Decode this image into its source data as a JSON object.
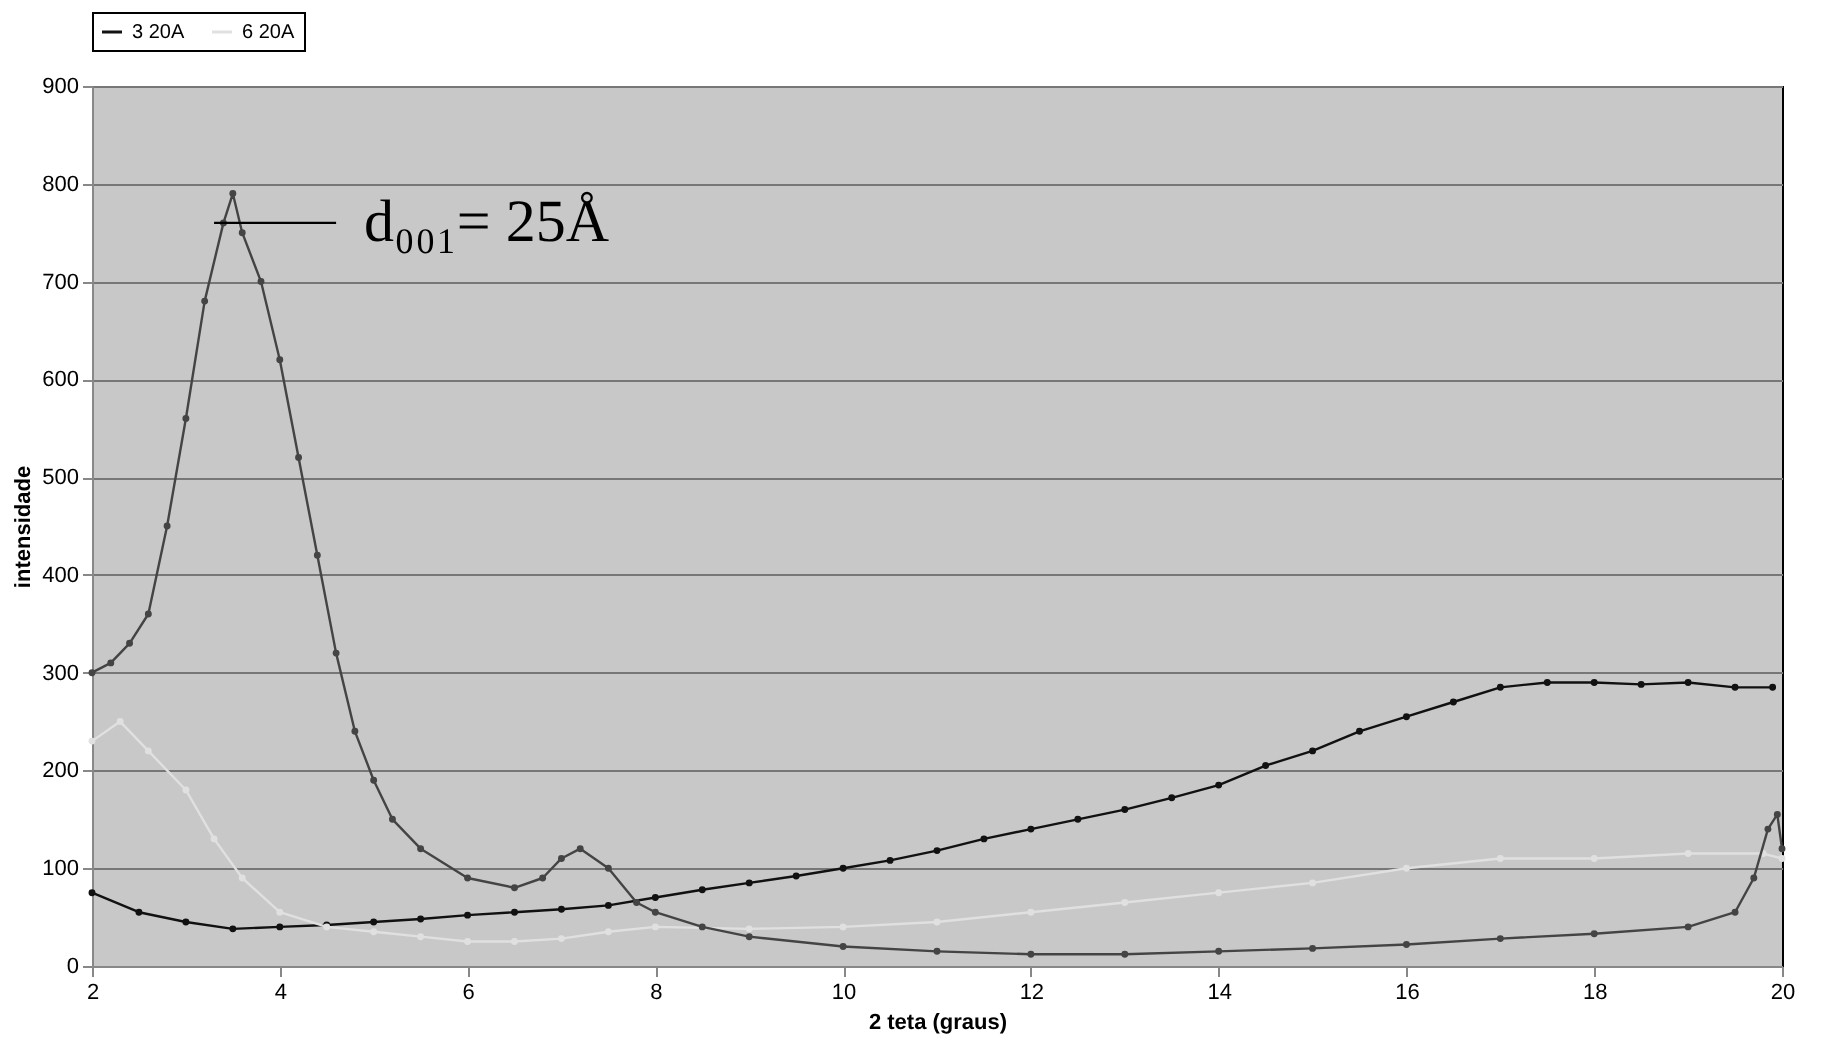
{
  "chart_data": {
    "type": "line",
    "xlabel": "2 teta (graus)",
    "ylabel": "intensidade",
    "xlim": [
      2,
      20
    ],
    "xticks": [
      2,
      4,
      6,
      8,
      10,
      12,
      14,
      16,
      18,
      20
    ],
    "ylim": [
      0,
      900
    ],
    "yticks": [
      0,
      100,
      200,
      300,
      400,
      500,
      600,
      700,
      800,
      900
    ],
    "grid": "y",
    "legend": "top",
    "marker": "circle",
    "line_style": "solid",
    "annotations": [
      {
        "text": "d₀₀₁= 25Å",
        "x": 4.6,
        "y": 760
      }
    ],
    "series": [
      {
        "name": "3 20A",
        "color": "#111111",
        "x": [
          2,
          2.5,
          3,
          3.5,
          4,
          4.5,
          5,
          5.5,
          6,
          6.5,
          7,
          7.5,
          8,
          8.5,
          9,
          9.5,
          10,
          10.5,
          11,
          11.5,
          12,
          12.5,
          13,
          13.5,
          14,
          14.5,
          15,
          15.5,
          16,
          16.5,
          17,
          17.5,
          18,
          18.5,
          19,
          19.5,
          19.9
        ],
        "values": [
          75,
          55,
          45,
          38,
          40,
          42,
          45,
          48,
          52,
          55,
          58,
          62,
          70,
          78,
          85,
          92,
          100,
          108,
          118,
          130,
          140,
          150,
          160,
          172,
          185,
          205,
          220,
          240,
          255,
          270,
          285,
          290,
          290,
          288,
          290,
          285,
          285
        ]
      },
      {
        "name": "6 20A",
        "color": "#e0e0e0",
        "x": [
          2,
          2.3,
          2.6,
          3,
          3.3,
          3.6,
          4,
          4.5,
          5,
          5.5,
          6,
          6.5,
          7,
          7.5,
          8,
          9,
          10,
          11,
          12,
          13,
          14,
          15,
          16,
          17,
          18,
          19,
          19.8,
          20
        ],
        "values": [
          230,
          250,
          220,
          180,
          130,
          90,
          55,
          40,
          35,
          30,
          25,
          25,
          28,
          35,
          40,
          38,
          40,
          45,
          55,
          65,
          75,
          85,
          100,
          110,
          110,
          115,
          115,
          110
        ]
      },
      {
        "color": "#444444",
        "x": [
          2,
          2.2,
          2.4,
          2.6,
          2.8,
          3,
          3.2,
          3.4,
          3.5,
          3.6,
          3.8,
          4,
          4.2,
          4.4,
          4.6,
          4.8,
          5,
          5.2,
          5.5,
          6,
          6.5,
          6.8,
          7,
          7.2,
          7.5,
          7.8,
          8,
          8.5,
          9,
          10,
          11,
          12,
          13,
          14,
          15,
          16,
          17,
          18,
          19,
          19.5,
          19.7,
          19.85,
          19.95,
          20
        ],
        "values": [
          300,
          310,
          330,
          360,
          450,
          560,
          680,
          760,
          790,
          750,
          700,
          620,
          520,
          420,
          320,
          240,
          190,
          150,
          120,
          90,
          80,
          90,
          110,
          120,
          100,
          65,
          55,
          40,
          30,
          20,
          15,
          12,
          12,
          15,
          18,
          22,
          28,
          33,
          40,
          55,
          90,
          140,
          155,
          120
        ]
      },
      {
        "type": "line",
        "marker": "none",
        "color": "#000000",
        "x": [
          3.3,
          4.6
        ],
        "values": [
          760,
          760
        ]
      }
    ]
  }
}
